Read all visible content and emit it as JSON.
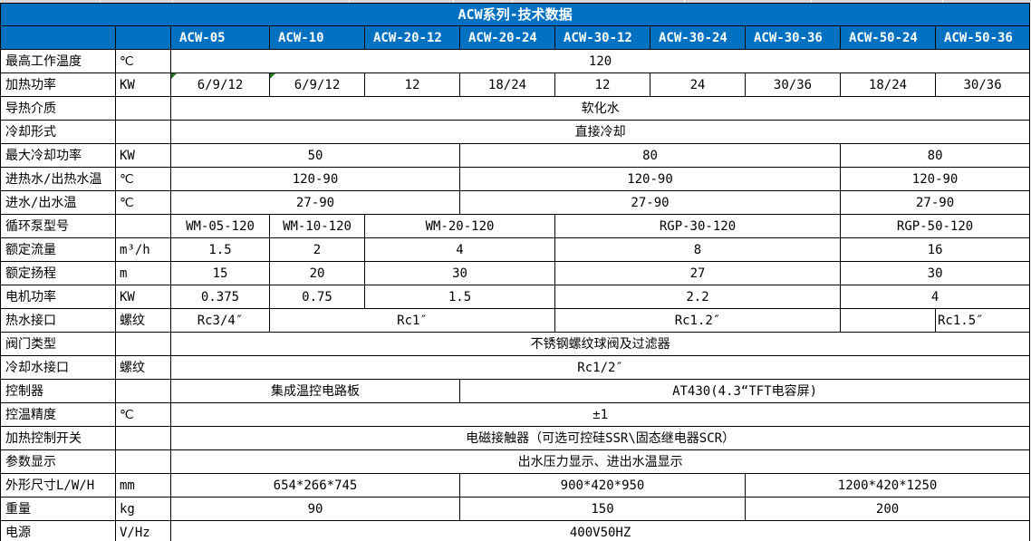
{
  "title": "ACW系列-技术数据",
  "colors": {
    "header_blue": "#0070C0",
    "flag_green": "#1E7A1E",
    "strip_gray": "#D8D8D8",
    "border_black": "#000000"
  },
  "icons": {
    "error_flag": "green-corner-triangle"
  },
  "table": {
    "models": [
      "ACW-05",
      "ACW-10",
      "ACW-20-12",
      "ACW-20-24",
      "ACW-30-12",
      "ACW-30-24",
      "ACW-30-36",
      "ACW-50-24",
      "ACW-50-36"
    ],
    "rows": [
      {
        "label": "最高工作温度",
        "unit": "℃",
        "cells": [
          {
            "text": "120",
            "span": 9
          }
        ]
      },
      {
        "label": "加热功率",
        "unit": "KW",
        "cells": [
          {
            "text": "6/9/12",
            "span": 1,
            "flag": true
          },
          {
            "text": "6/9/12",
            "span": 1,
            "flag": true
          },
          {
            "text": "12",
            "span": 1
          },
          {
            "text": "18/24",
            "span": 1
          },
          {
            "text": "12",
            "span": 1
          },
          {
            "text": "24",
            "span": 1
          },
          {
            "text": "30/36",
            "span": 1
          },
          {
            "text": "18/24",
            "span": 1
          },
          {
            "text": "30/36",
            "span": 1
          }
        ]
      },
      {
        "label": "导热介质",
        "unit": "",
        "cells": [
          {
            "text": "软化水",
            "span": 9
          }
        ]
      },
      {
        "label": "冷却形式",
        "unit": "",
        "cells": [
          {
            "text": "直接冷却",
            "span": 9
          }
        ]
      },
      {
        "label": "最大冷却功率",
        "unit": "KW",
        "cells": [
          {
            "text": "50",
            "span": 3
          },
          {
            "text": "80",
            "span": 4
          },
          {
            "text": "80",
            "span": 2
          }
        ]
      },
      {
        "label": "进热水/出热水温",
        "unit": "℃",
        "cells": [
          {
            "text": "120-90",
            "span": 3
          },
          {
            "text": "120-90",
            "span": 4
          },
          {
            "text": "120-90",
            "span": 2
          }
        ]
      },
      {
        "label": "进水/出水温",
        "unit": "℃",
        "cells": [
          {
            "text": "27-90",
            "span": 3
          },
          {
            "text": "27-90",
            "span": 4
          },
          {
            "text": "27-90",
            "span": 2
          }
        ]
      },
      {
        "label": "循环泵型号",
        "unit": "",
        "cells": [
          {
            "text": "WM-05-120",
            "span": 1
          },
          {
            "text": "WM-10-120",
            "span": 1
          },
          {
            "text": "WM-20-120",
            "span": 2
          },
          {
            "text": "RGP-30-120",
            "span": 3
          },
          {
            "text": "RGP-50-120",
            "span": 2
          }
        ]
      },
      {
        "label": "额定流量",
        "unit": "m³/h",
        "cells": [
          {
            "text": "1.5",
            "span": 1
          },
          {
            "text": "2",
            "span": 1
          },
          {
            "text": "4",
            "span": 2
          },
          {
            "text": "8",
            "span": 3
          },
          {
            "text": "16",
            "span": 2
          }
        ]
      },
      {
        "label": "额定扬程",
        "unit": "m",
        "cells": [
          {
            "text": "15",
            "span": 1
          },
          {
            "text": "20",
            "span": 1
          },
          {
            "text": "30",
            "span": 2
          },
          {
            "text": "27",
            "span": 3
          },
          {
            "text": "30",
            "span": 2
          }
        ]
      },
      {
        "label": "电机功率",
        "unit": "KW",
        "cells": [
          {
            "text": "0.375",
            "span": 1
          },
          {
            "text": "0.75",
            "span": 1
          },
          {
            "text": "1.5",
            "span": 2
          },
          {
            "text": "2.2",
            "span": 3
          },
          {
            "text": "4",
            "span": 2
          }
        ]
      },
      {
        "label": "热水接口",
        "unit": "螺纹",
        "cells": [
          {
            "text": "Rc3/4″",
            "span": 1
          },
          {
            "text": "Rc1″",
            "span": 3
          },
          {
            "text": "Rc1.2″",
            "span": 3
          },
          {
            "text": "",
            "span": 1
          },
          {
            "text": "Rc1.5″",
            "span": 1,
            "align": "left"
          }
        ]
      },
      {
        "label": "阀门类型",
        "unit": "",
        "cells": [
          {
            "text": "不锈钢螺纹球阀及过滤器",
            "span": 9
          }
        ]
      },
      {
        "label": "冷却水接口",
        "unit": "螺纹",
        "cells": [
          {
            "text": "Rc1/2″",
            "span": 9
          }
        ]
      },
      {
        "label": "控制器",
        "unit": "",
        "cells": [
          {
            "text": "集成温控电路板",
            "span": 3
          },
          {
            "text": "AT430(4.3“TFT电容屏)",
            "span": 6
          }
        ]
      },
      {
        "label": "控温精度",
        "unit": "℃",
        "cells": [
          {
            "text": "±1",
            "span": 9
          }
        ]
      },
      {
        "label": "加热控制开关",
        "unit": "",
        "cells": [
          {
            "text": "电磁接触器（可选可控硅SSR\\固态继电器SCR）",
            "span": 9
          }
        ]
      },
      {
        "label": "参数显示",
        "unit": "",
        "cells": [
          {
            "text": "出水压力显示、进出水温显示",
            "span": 9
          }
        ]
      },
      {
        "label": "外形尺寸L/W/H",
        "unit": "mm",
        "cells": [
          {
            "text": "654*266*745",
            "span": 3
          },
          {
            "text": "900*420*950",
            "span": 3
          },
          {
            "text": "1200*420*1250",
            "span": 3
          }
        ]
      },
      {
        "label": "重量",
        "unit": "kg",
        "cells": [
          {
            "text": "90",
            "span": 3
          },
          {
            "text": "150",
            "span": 3
          },
          {
            "text": "200",
            "span": 3
          }
        ]
      },
      {
        "label": "电源",
        "unit": "V/Hz",
        "cells": [
          {
            "text": "400V50HZ",
            "span": 9
          }
        ]
      }
    ]
  }
}
